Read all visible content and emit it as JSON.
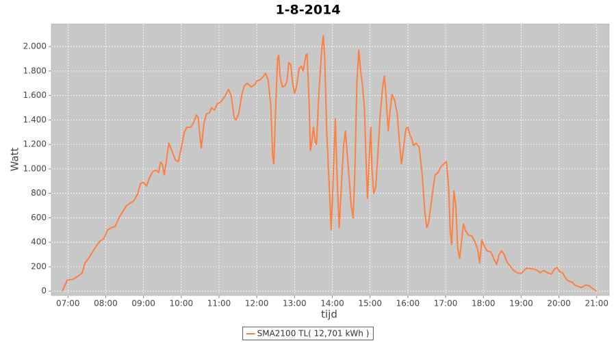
{
  "chart_data": {
    "type": "line",
    "title": "1-8-2014",
    "xlabel": "tijd",
    "ylabel": "Watt",
    "grid": true,
    "legend": "bottom",
    "xlim": [
      6.56,
      21.33
    ],
    "ylim": [
      -35,
      2185
    ],
    "xticks": [
      {
        "value": 7,
        "label": "07:00"
      },
      {
        "value": 8,
        "label": "08:00"
      },
      {
        "value": 9,
        "label": "09:00"
      },
      {
        "value": 10,
        "label": "10:00"
      },
      {
        "value": 11,
        "label": "11:00"
      },
      {
        "value": 12,
        "label": "12:00"
      },
      {
        "value": 13,
        "label": "13:00"
      },
      {
        "value": 14,
        "label": "14:00"
      },
      {
        "value": 15,
        "label": "15:00"
      },
      {
        "value": 16,
        "label": "16:00"
      },
      {
        "value": 17,
        "label": "17:00"
      },
      {
        "value": 18,
        "label": "18:00"
      },
      {
        "value": 19,
        "label": "19:00"
      },
      {
        "value": 20,
        "label": "20:00"
      },
      {
        "value": 21,
        "label": "21:00"
      }
    ],
    "yticks": [
      0,
      200,
      400,
      600,
      800,
      {
        "value": 1000,
        "label": "1.000"
      },
      {
        "value": 1200,
        "label": "1.200"
      },
      {
        "value": 1400,
        "label": "1.400"
      },
      {
        "value": 1600,
        "label": "1.600"
      },
      {
        "value": 1800,
        "label": "1.800"
      },
      {
        "value": 2000,
        "label": "2.000"
      }
    ],
    "x": [
      6.85,
      6.92,
      6.98,
      7.05,
      7.12,
      7.2,
      7.3,
      7.38,
      7.45,
      7.55,
      7.65,
      7.75,
      7.85,
      7.95,
      8.05,
      8.15,
      8.25,
      8.35,
      8.45,
      8.55,
      8.65,
      8.75,
      8.85,
      8.92,
      9.0,
      9.08,
      9.15,
      9.25,
      9.33,
      9.4,
      9.45,
      9.5,
      9.55,
      9.6,
      9.67,
      9.75,
      9.85,
      9.92,
      10.0,
      10.08,
      10.15,
      10.25,
      10.33,
      10.4,
      10.45,
      10.5,
      10.53,
      10.6,
      10.67,
      10.75,
      10.8,
      10.88,
      10.95,
      11.05,
      11.15,
      11.25,
      11.32,
      11.4,
      11.45,
      11.52,
      11.6,
      11.67,
      11.75,
      11.85,
      11.95,
      12.0,
      12.1,
      12.18,
      12.23,
      12.3,
      12.37,
      12.42,
      12.45,
      12.5,
      12.55,
      12.58,
      12.62,
      12.68,
      12.75,
      12.8,
      12.85,
      12.9,
      12.95,
      13.0,
      13.05,
      13.12,
      13.18,
      13.23,
      13.3,
      13.33,
      13.38,
      13.42,
      13.45,
      13.5,
      13.55,
      13.58,
      13.65,
      13.72,
      13.76,
      13.8,
      13.85,
      13.92,
      13.97,
      14.02,
      14.08,
      14.13,
      14.18,
      14.22,
      14.3,
      14.35,
      14.4,
      14.45,
      14.5,
      14.55,
      14.6,
      14.65,
      14.7,
      14.75,
      14.8,
      14.85,
      14.9,
      14.93,
      14.98,
      15.02,
      15.05,
      15.1,
      15.15,
      15.2,
      15.27,
      15.33,
      15.38,
      15.42,
      15.48,
      15.52,
      15.58,
      15.65,
      15.72,
      15.78,
      15.83,
      15.88,
      15.95,
      16.0,
      16.05,
      16.1,
      16.15,
      16.22,
      16.3,
      16.38,
      16.45,
      16.5,
      16.55,
      16.65,
      16.72,
      16.8,
      16.88,
      16.95,
      17.02,
      17.08,
      17.12,
      17.16,
      17.22,
      17.27,
      17.32,
      17.37,
      17.43,
      17.47,
      17.52,
      17.6,
      17.7,
      17.78,
      17.85,
      17.9,
      17.96,
      18.02,
      18.1,
      18.2,
      18.28,
      18.35,
      18.42,
      18.48,
      18.55,
      18.62,
      18.7,
      18.8,
      18.9,
      19.0,
      19.08,
      19.15,
      19.25,
      19.35,
      19.45,
      19.5,
      19.6,
      19.7,
      19.8,
      19.88,
      19.95,
      20.02,
      20.1,
      20.15,
      20.22,
      20.28,
      20.35,
      20.42,
      20.5,
      20.6,
      20.7,
      20.8,
      20.9,
      21.0
    ],
    "series": [
      {
        "name": "SMA2100 TL( 12,701 kWh )",
        "color": "#ff7f3f",
        "values": [
          0,
          50,
          90,
          95,
          95,
          110,
          130,
          150,
          230,
          270,
          320,
          370,
          410,
          430,
          500,
          520,
          530,
          600,
          650,
          700,
          720,
          740,
          800,
          880,
          890,
          860,
          920,
          980,
          990,
          970,
          1055,
          1040,
          950,
          1050,
          1210,
          1150,
          1070,
          1060,
          1170,
          1300,
          1340,
          1340,
          1380,
          1440,
          1420,
          1250,
          1170,
          1370,
          1450,
          1460,
          1500,
          1480,
          1530,
          1550,
          1590,
          1650,
          1600,
          1420,
          1400,
          1450,
          1600,
          1680,
          1700,
          1670,
          1690,
          1720,
          1730,
          1760,
          1780,
          1730,
          1520,
          1100,
          1040,
          1500,
          1900,
          1930,
          1750,
          1670,
          1680,
          1720,
          1870,
          1850,
          1700,
          1620,
          1670,
          1820,
          1840,
          1800,
          1930,
          1940,
          1600,
          1150,
          1200,
          1340,
          1220,
          1200,
          1650,
          1980,
          2090,
          1900,
          1300,
          850,
          500,
          900,
          1410,
          900,
          520,
          750,
          1200,
          1310,
          1100,
          900,
          700,
          600,
          1000,
          1700,
          1970,
          1800,
          1680,
          1500,
          1000,
          760,
          1100,
          1340,
          1000,
          800,
          850,
          1100,
          1450,
          1660,
          1760,
          1600,
          1310,
          1450,
          1610,
          1560,
          1450,
          1200,
          1040,
          1160,
          1330,
          1340,
          1280,
          1250,
          1190,
          1210,
          1180,
          950,
          650,
          520,
          560,
          800,
          950,
          970,
          1020,
          1040,
          1060,
          850,
          500,
          380,
          820,
          700,
          350,
          270,
          430,
          550,
          500,
          460,
          450,
          400,
          340,
          230,
          420,
          370,
          330,
          320,
          260,
          220,
          300,
          330,
          300,
          240,
          210,
          170,
          150,
          145,
          170,
          190,
          185,
          180,
          165,
          150,
          170,
          150,
          140,
          180,
          195,
          160,
          150,
          120,
          90,
          80,
          75,
          50,
          40,
          30,
          50,
          45,
          20,
          0
        ]
      }
    ]
  }
}
